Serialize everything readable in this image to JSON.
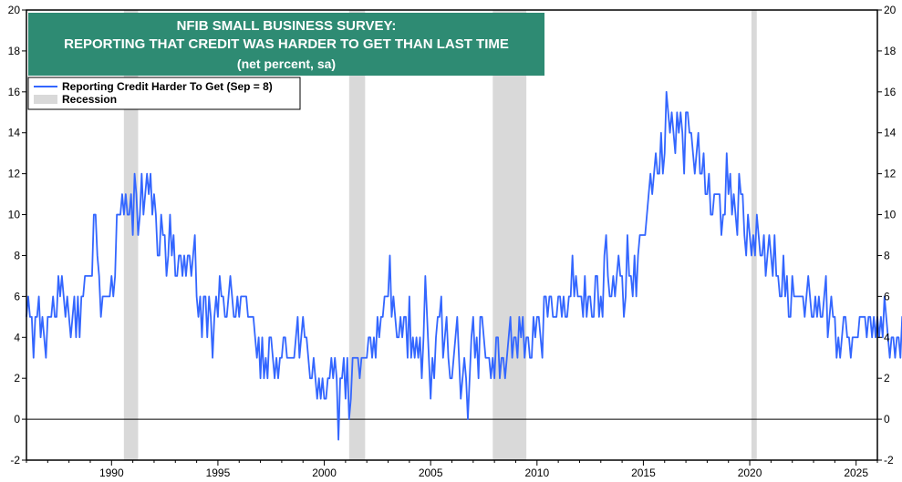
{
  "chart_data": {
    "type": "line",
    "title": [
      "NFIB SMALL BUSINESS SURVEY:",
      "REPORTING THAT CREDIT WAS HARDER TO GET THAN LAST TIME",
      "(net percent, sa)"
    ],
    "xlabel": "",
    "ylabel": "",
    "xlim": [
      1986.0,
      2026.0
    ],
    "ylim": [
      -2,
      20
    ],
    "yticks": [
      -2,
      0,
      2,
      4,
      6,
      8,
      10,
      12,
      14,
      16,
      18,
      20
    ],
    "yticklabels": [
      "-2",
      "0",
      "2",
      "4",
      "6",
      "8",
      "10",
      "12",
      "14",
      "16",
      "18",
      "20"
    ],
    "xticks": [
      1990,
      1995,
      2000,
      2005,
      2010,
      2015,
      2020,
      2025
    ],
    "xticklabels": [
      "1990",
      "1995",
      "2000",
      "2005",
      "2010",
      "2015",
      "2020",
      "2025"
    ],
    "legend": {
      "position": "top-left",
      "series_label": "Reporting Credit Harder To Get (Sep = 8)",
      "recession_label": "Recession"
    },
    "series": [
      {
        "name": "Reporting Credit Harder To Get (Sep = 8)",
        "color": "#3366ff",
        "start": 1986.0,
        "step": 0.0833333,
        "values": [
          5,
          6,
          5,
          5,
          3,
          5,
          5,
          6,
          4,
          5,
          4,
          3,
          5,
          5,
          5,
          6,
          5,
          5,
          7,
          6,
          7,
          6,
          5,
          6,
          5,
          4,
          5,
          6,
          4,
          6,
          4,
          6,
          6,
          7,
          7,
          7,
          7,
          7,
          10,
          10,
          8,
          7,
          5,
          6,
          6,
          6,
          6,
          6,
          7,
          6,
          7,
          10,
          10,
          10,
          11,
          10,
          11,
          10,
          10,
          11,
          9,
          12,
          11,
          9,
          10,
          12,
          10,
          11,
          12,
          11,
          12,
          10,
          11,
          10,
          8,
          8,
          10,
          9,
          9,
          7,
          8,
          10,
          8,
          9,
          7,
          7,
          8,
          8,
          7,
          8,
          7,
          8,
          8,
          7,
          8,
          9,
          6,
          5,
          6,
          4,
          6,
          6,
          4,
          6,
          5,
          3,
          5,
          6,
          5,
          7,
          6,
          6,
          5,
          5,
          6,
          7,
          6,
          5,
          5,
          6,
          5,
          6,
          6,
          6,
          6,
          5,
          5,
          5,
          5,
          4,
          3,
          4,
          2,
          4,
          2,
          3,
          2,
          4,
          4,
          3,
          2,
          3,
          2,
          3,
          3,
          4,
          4,
          3,
          3,
          3,
          3,
          3,
          4,
          5,
          3,
          4,
          5,
          4,
          4,
          3,
          2,
          2,
          3,
          2,
          1,
          2,
          1,
          2,
          1,
          1,
          2,
          2,
          3,
          2,
          3,
          2,
          -1,
          2,
          2,
          3,
          1,
          3,
          0,
          1,
          3,
          3,
          3,
          3,
          2,
          3,
          3,
          3,
          3,
          4,
          4,
          3,
          4,
          3,
          5,
          4,
          5,
          5,
          6,
          6,
          6,
          8,
          5,
          6,
          5,
          4,
          4,
          5,
          4,
          5,
          5,
          3,
          6,
          3,
          4,
          3,
          4,
          3,
          4,
          2,
          4,
          7,
          5,
          3,
          1,
          3,
          2,
          4,
          5,
          5,
          6,
          3,
          4,
          5,
          3,
          2,
          2,
          3,
          4,
          5,
          3,
          1,
          2,
          3,
          2,
          0,
          2,
          4,
          5,
          3,
          4,
          2,
          5,
          5,
          4,
          3,
          3,
          3,
          2,
          3,
          2,
          4,
          4,
          2,
          3,
          3,
          2,
          3,
          4,
          5,
          3,
          4,
          4,
          3,
          5,
          4,
          5,
          3,
          4,
          4,
          3,
          3,
          5,
          4,
          5,
          5,
          4,
          3,
          6,
          6,
          5,
          6,
          6,
          5,
          5,
          5,
          6,
          6,
          5,
          6,
          5,
          5,
          6,
          6,
          8,
          6,
          7,
          6,
          6,
          6,
          5,
          7,
          5,
          6,
          6,
          5,
          5,
          7,
          7,
          5,
          6,
          5,
          8,
          9,
          7,
          6,
          6,
          7,
          6,
          7,
          8,
          7,
          7,
          5,
          6,
          9,
          7,
          7,
          6,
          8,
          6,
          8,
          9,
          9,
          9,
          9,
          10,
          11,
          12,
          11,
          12,
          13,
          12,
          12,
          14,
          12,
          13,
          16,
          15,
          14,
          15,
          14,
          13,
          15,
          14,
          15,
          14,
          12,
          15,
          15,
          14,
          14,
          13,
          12,
          13,
          14,
          12,
          12,
          13,
          11,
          11,
          12,
          10,
          10,
          11,
          11,
          11,
          11,
          9,
          10,
          10,
          13,
          11,
          12,
          10,
          11,
          10,
          9,
          12,
          11,
          11,
          9,
          8,
          10,
          9,
          8,
          9,
          8,
          10,
          9,
          8,
          8,
          9,
          7,
          8,
          9,
          8,
          7,
          9,
          7,
          7,
          6,
          6,
          8,
          6,
          7,
          5,
          5,
          7,
          6,
          6,
          6,
          6,
          6,
          6,
          5,
          6,
          7,
          6,
          5,
          5,
          6,
          5,
          6,
          5,
          5,
          6,
          7,
          4,
          5,
          6,
          5,
          5,
          3,
          4,
          3,
          4,
          5,
          5,
          4,
          4,
          3,
          4,
          4,
          4,
          4,
          5,
          5,
          5,
          5,
          4,
          5,
          5,
          4,
          5,
          4,
          5,
          4,
          5,
          4,
          6,
          5,
          4,
          3,
          4,
          4,
          3,
          4,
          4,
          3,
          5,
          4,
          3,
          4,
          5,
          4,
          3,
          4,
          4,
          3,
          3,
          3,
          4,
          4,
          3,
          4,
          3,
          3,
          5,
          4,
          4,
          3,
          4,
          3,
          4,
          5,
          3,
          4,
          4,
          5,
          4,
          5,
          4,
          3,
          4,
          6,
          4,
          5,
          4,
          3,
          5,
          3,
          2,
          2,
          1,
          2,
          3,
          3,
          3,
          4,
          3,
          2,
          4,
          4,
          3,
          3,
          4,
          2,
          3,
          3,
          1,
          2,
          2,
          1,
          3,
          2,
          3,
          2,
          2,
          3,
          2,
          3,
          1,
          1,
          3,
          2,
          1,
          2,
          1,
          2,
          1,
          3,
          3,
          1,
          2,
          2,
          1,
          1,
          2,
          3,
          3,
          4,
          4,
          3,
          3,
          2,
          3,
          3,
          2,
          2,
          2,
          2,
          3,
          4,
          2,
          4,
          4,
          3,
          5,
          4,
          4,
          5,
          5,
          6,
          5,
          6,
          5,
          6,
          5,
          6,
          6,
          5,
          6,
          9,
          7,
          5,
          7,
          6,
          6,
          4,
          7,
          7,
          7,
          8,
          8,
          7,
          8,
          7,
          8,
          6,
          7,
          8,
          7,
          8,
          6,
          8,
          7,
          6,
          8,
          7,
          7,
          8
        ]
      }
    ],
    "recessions": [
      [
        1990.58,
        1991.25
      ],
      [
        2001.17,
        2001.92
      ],
      [
        2007.92,
        2009.5
      ],
      [
        2020.08,
        2020.33
      ]
    ],
    "zero_line": true
  },
  "colors": {
    "line": "#3366ff",
    "recession": "#d9d9d9",
    "title_bg": "#2e8b73",
    "title_text": "#ffffff"
  }
}
